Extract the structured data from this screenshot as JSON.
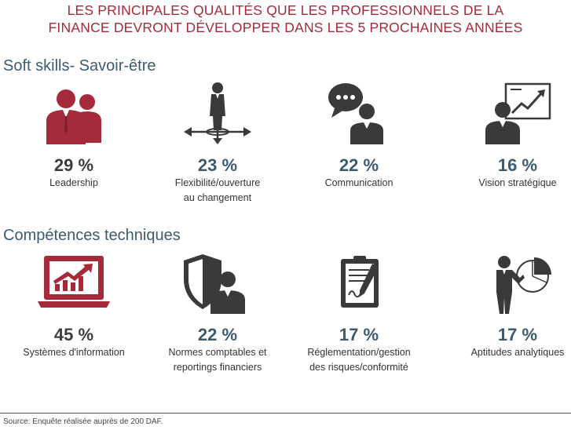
{
  "title": {
    "line1": "LES PRINCIPALES QUALITÉS QUE LES PROFESSIONNELS DE LA",
    "line2": "FINANCE DEVRONT DÉVELOPPER DANS LES 5 PROCHAINES ANNÉES"
  },
  "colors": {
    "title": "#a52a3a",
    "heading": "#3d5a6e",
    "soft": "#a52a3a",
    "tech_dark": "#3a3a3a"
  },
  "chart_data": {
    "type": "table",
    "title": "LES PRINCIPALES QUALITÉS QUE LES PROFESSIONNELS DE LA FINANCE DEVRONT DÉVELOPPER DANS LES 5 PROCHAINES ANNÉES",
    "unit": "%",
    "groups": [
      {
        "name": "Soft skills- Savoir-être",
        "items": [
          {
            "value": 29,
            "display": "29 %",
            "label_lines": [
              "Leadership"
            ],
            "icon": "leadership-icon",
            "color": "#a52a3a"
          },
          {
            "value": 23,
            "display": "23 %",
            "label_lines": [
              "Flexibilité/ouverture",
              "au changement"
            ],
            "icon": "flexibility-icon",
            "color": "#3d5a6e"
          },
          {
            "value": 22,
            "display": "22 %",
            "label_lines": [
              "Communication"
            ],
            "icon": "communication-icon",
            "color": "#3d5a6e"
          },
          {
            "value": 16,
            "display": "16 %",
            "label_lines": [
              "Vision stratégique"
            ],
            "icon": "strategy-icon",
            "color": "#3d5a6e"
          }
        ]
      },
      {
        "name": "Compétences techniques",
        "items": [
          {
            "value": 45,
            "display": "45 %",
            "label_lines": [
              "Systèmes d'information"
            ],
            "icon": "laptop-chart-icon",
            "color": "#a52a3a"
          },
          {
            "value": 22,
            "display": "22 %",
            "label_lines": [
              "Normes comptables et",
              "reportings financiers"
            ],
            "icon": "shield-person-icon",
            "color": "#3d5a6e"
          },
          {
            "value": 17,
            "display": "17 %",
            "label_lines": [
              "Réglementation/gestion",
              "des risques/conformité"
            ],
            "icon": "contract-pen-icon",
            "color": "#3d5a6e"
          },
          {
            "value": 17,
            "display": "17 %",
            "label_lines": [
              "Aptitudes analytiques"
            ],
            "icon": "analyst-icon",
            "color": "#3d5a6e"
          }
        ]
      }
    ]
  },
  "source": "Source: Enquête réalisée auprès de 200 DAF."
}
